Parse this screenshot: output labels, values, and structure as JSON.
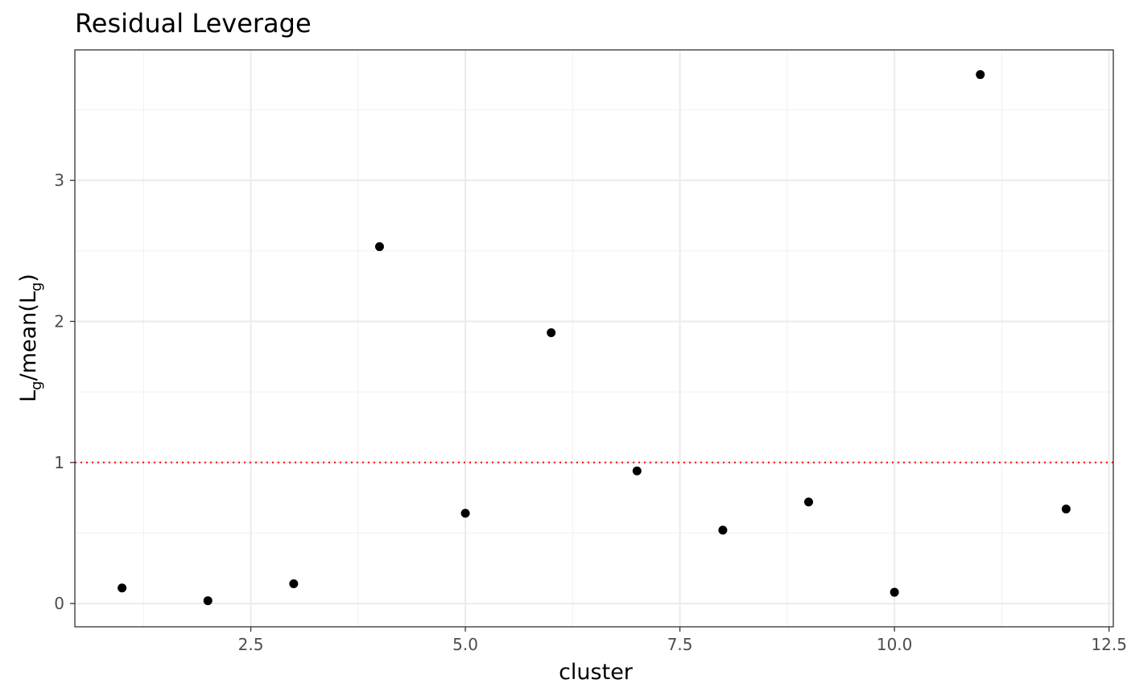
{
  "chart_data": {
    "type": "scatter",
    "title": "Residual Leverage",
    "xlabel": "cluster",
    "ylabel": {
      "base": "L",
      "sub": "g",
      "mid": "/mean(",
      "base2": "L",
      "sub2": "g",
      "end": ")"
    },
    "xlim": [
      0.45,
      12.55
    ],
    "ylim": [
      -0.165,
      3.925
    ],
    "x_ticks": [
      2.5,
      5.0,
      7.5,
      10.0,
      12.5
    ],
    "x_tick_labels": [
      "2.5",
      "5.0",
      "7.5",
      "10.0",
      "12.5"
    ],
    "x_minor_ticks": [
      1.25,
      3.75,
      6.25,
      8.75,
      11.25
    ],
    "y_ticks": [
      0,
      1,
      2,
      3
    ],
    "y_tick_labels": [
      "0",
      "1",
      "2",
      "3"
    ],
    "y_minor_ticks": [
      0.5,
      1.5,
      2.5,
      3.5
    ],
    "grid": true,
    "reference_line": {
      "y": 1,
      "color": "#ff0000",
      "style": "dotted"
    },
    "point_color": "#000000",
    "points": [
      {
        "x": 1,
        "y": 0.11
      },
      {
        "x": 2,
        "y": 0.02
      },
      {
        "x": 3,
        "y": 0.14
      },
      {
        "x": 4,
        "y": 2.53
      },
      {
        "x": 5,
        "y": 0.64
      },
      {
        "x": 6,
        "y": 1.92
      },
      {
        "x": 7,
        "y": 0.94
      },
      {
        "x": 8,
        "y": 0.52
      },
      {
        "x": 9,
        "y": 0.72
      },
      {
        "x": 10,
        "y": 0.08
      },
      {
        "x": 11,
        "y": 3.75
      },
      {
        "x": 12,
        "y": 0.67
      }
    ]
  }
}
